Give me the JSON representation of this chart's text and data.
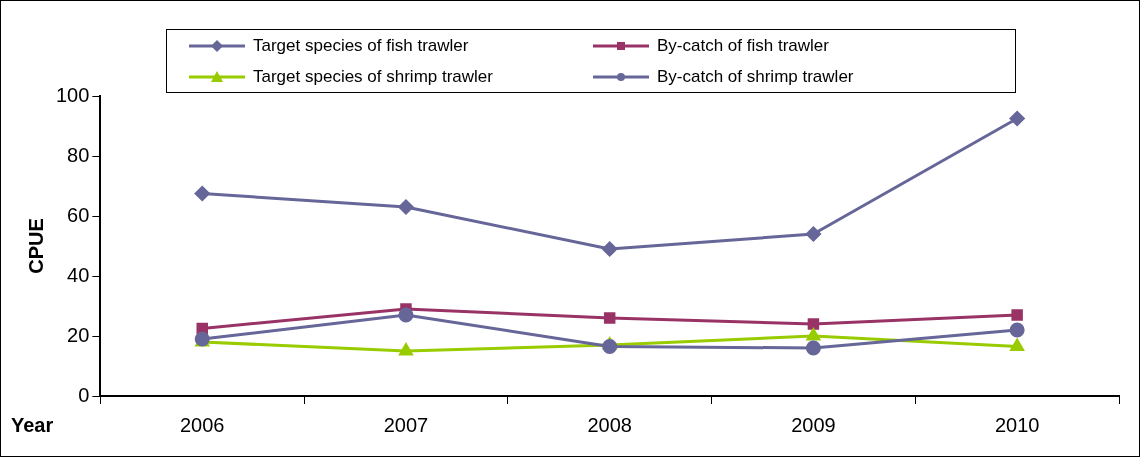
{
  "chart_data": {
    "type": "line",
    "xlabel": "Year",
    "ylabel": "CPUE",
    "categories": [
      "2006",
      "2007",
      "2008",
      "2009",
      "2010"
    ],
    "series": [
      {
        "name": "Target species of fish trawler",
        "color": "#666699",
        "marker": "diamond",
        "values": [
          67.5,
          63,
          49,
          54,
          92.5
        ]
      },
      {
        "name": "By-catch of fish trawler",
        "color": "#993366",
        "marker": "square",
        "values": [
          22.5,
          29,
          26,
          24,
          27
        ]
      },
      {
        "name": "Target species of shrimp trawler",
        "color": "#99cc00",
        "marker": "triangle",
        "values": [
          18,
          15,
          17,
          20,
          16.5
        ]
      },
      {
        "name": "By-catch of shrimp trawler",
        "color": "#666699",
        "marker": "circle",
        "values": [
          19,
          27,
          16.5,
          16,
          22
        ]
      }
    ],
    "ylim": [
      0,
      100
    ],
    "yticks": [
      0,
      20,
      40,
      60,
      80,
      100
    ],
    "grid": false,
    "legend": "top",
    "line_style": "solid"
  }
}
